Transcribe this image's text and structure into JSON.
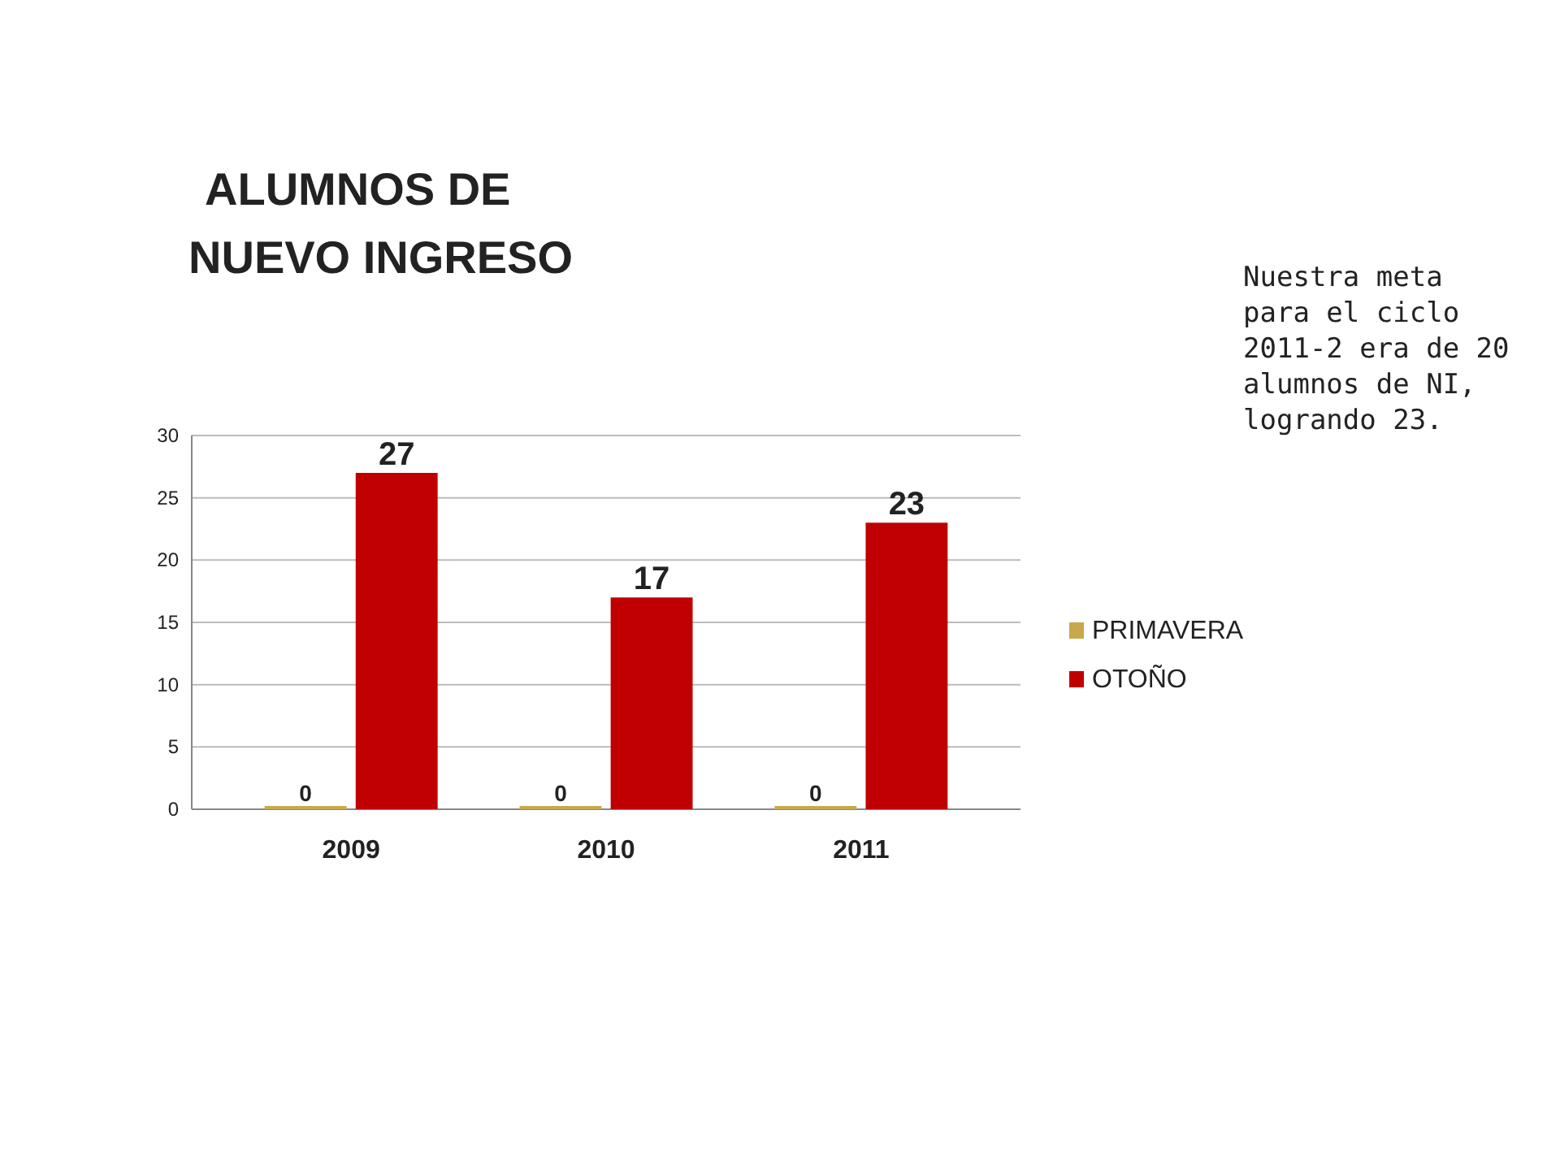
{
  "chart_data": {
    "type": "bar",
    "title": "ALUMNOS DE NUEVO INGRESO",
    "categories": [
      "2009",
      "2010",
      "2011"
    ],
    "series": [
      {
        "name": "PRIMAVERA",
        "color": "#c8a84a",
        "values": [
          0,
          0,
          0
        ]
      },
      {
        "name": "OTOÑO",
        "color": "#c00000",
        "values": [
          27,
          17,
          23
        ]
      }
    ],
    "ylim": [
      0,
      30
    ],
    "yticks": [
      0,
      5,
      10,
      15,
      20,
      25,
      30
    ],
    "grid": "y",
    "legend": "right",
    "data_labels": true,
    "annotations": [
      "Nuestra meta para el ciclo 2011-2 era de 20 alumnos de NI, logrando 23."
    ]
  }
}
